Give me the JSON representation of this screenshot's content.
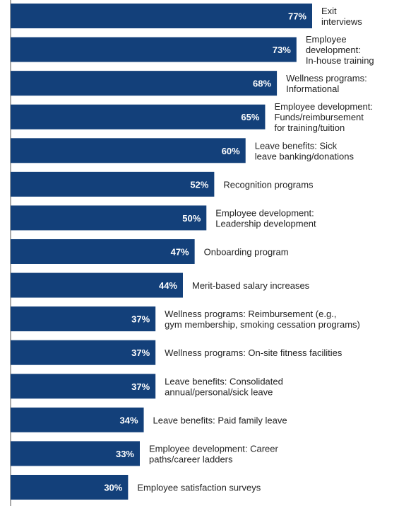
{
  "chart_data": {
    "type": "bar",
    "orientation": "horizontal",
    "unit": "%",
    "bar_color": "#13407a",
    "categories": [
      "Exit interviews",
      "Employee development: In-house training",
      "Wellness programs: Informational",
      "Employee development: Funds/reimbursement for training/tuition",
      "Leave benefits: Sick leave banking/donations",
      "Recognition programs",
      "Employee development: Leadership development",
      "Onboarding program",
      "Merit-based salary increases",
      "Wellness programs: Reimbursement (e.g., gym membership, smoking cessation programs)",
      "Wellness programs: On-site fitness facilities",
      "Leave benefits: Consolidated annual/personal/sick leave",
      "Leave benefits: Paid family leave",
      "Employee development: Career paths/career ladders",
      "Employee satisfaction surveys"
    ],
    "label_lines": [
      [
        "Exit",
        "interviews"
      ],
      [
        "Employee",
        "development:",
        "In-house training"
      ],
      [
        "Wellness programs:",
        "Informational"
      ],
      [
        "Employee development:",
        "Funds/reimbursement",
        "for training/tuition"
      ],
      [
        "Leave benefits: Sick",
        "leave banking/donations"
      ],
      [
        "Recognition programs"
      ],
      [
        "Employee development:",
        "Leadership development"
      ],
      [
        "Onboarding program"
      ],
      [
        "Merit-based salary increases"
      ],
      [
        "Wellness programs: Reimbursement (e.g.,",
        "gym membership, smoking cessation programs)"
      ],
      [
        "Wellness programs: On-site fitness facilities"
      ],
      [
        "Leave benefits: Consolidated",
        "annual/personal/sick leave"
      ],
      [
        "Leave benefits: Paid family leave"
      ],
      [
        "Employee development: Career",
        "paths/career ladders"
      ],
      [
        "Employee satisfaction surveys"
      ]
    ],
    "values": [
      77,
      73,
      68,
      65,
      60,
      52,
      50,
      47,
      44,
      37,
      37,
      37,
      34,
      33,
      30
    ],
    "value_labels": [
      "77%",
      "73%",
      "68%",
      "65%",
      "60%",
      "52%",
      "50%",
      "47%",
      "44%",
      "37%",
      "37%",
      "37%",
      "34%",
      "33%",
      "30%"
    ],
    "xlim": [
      0,
      77
    ],
    "grid": false
  }
}
